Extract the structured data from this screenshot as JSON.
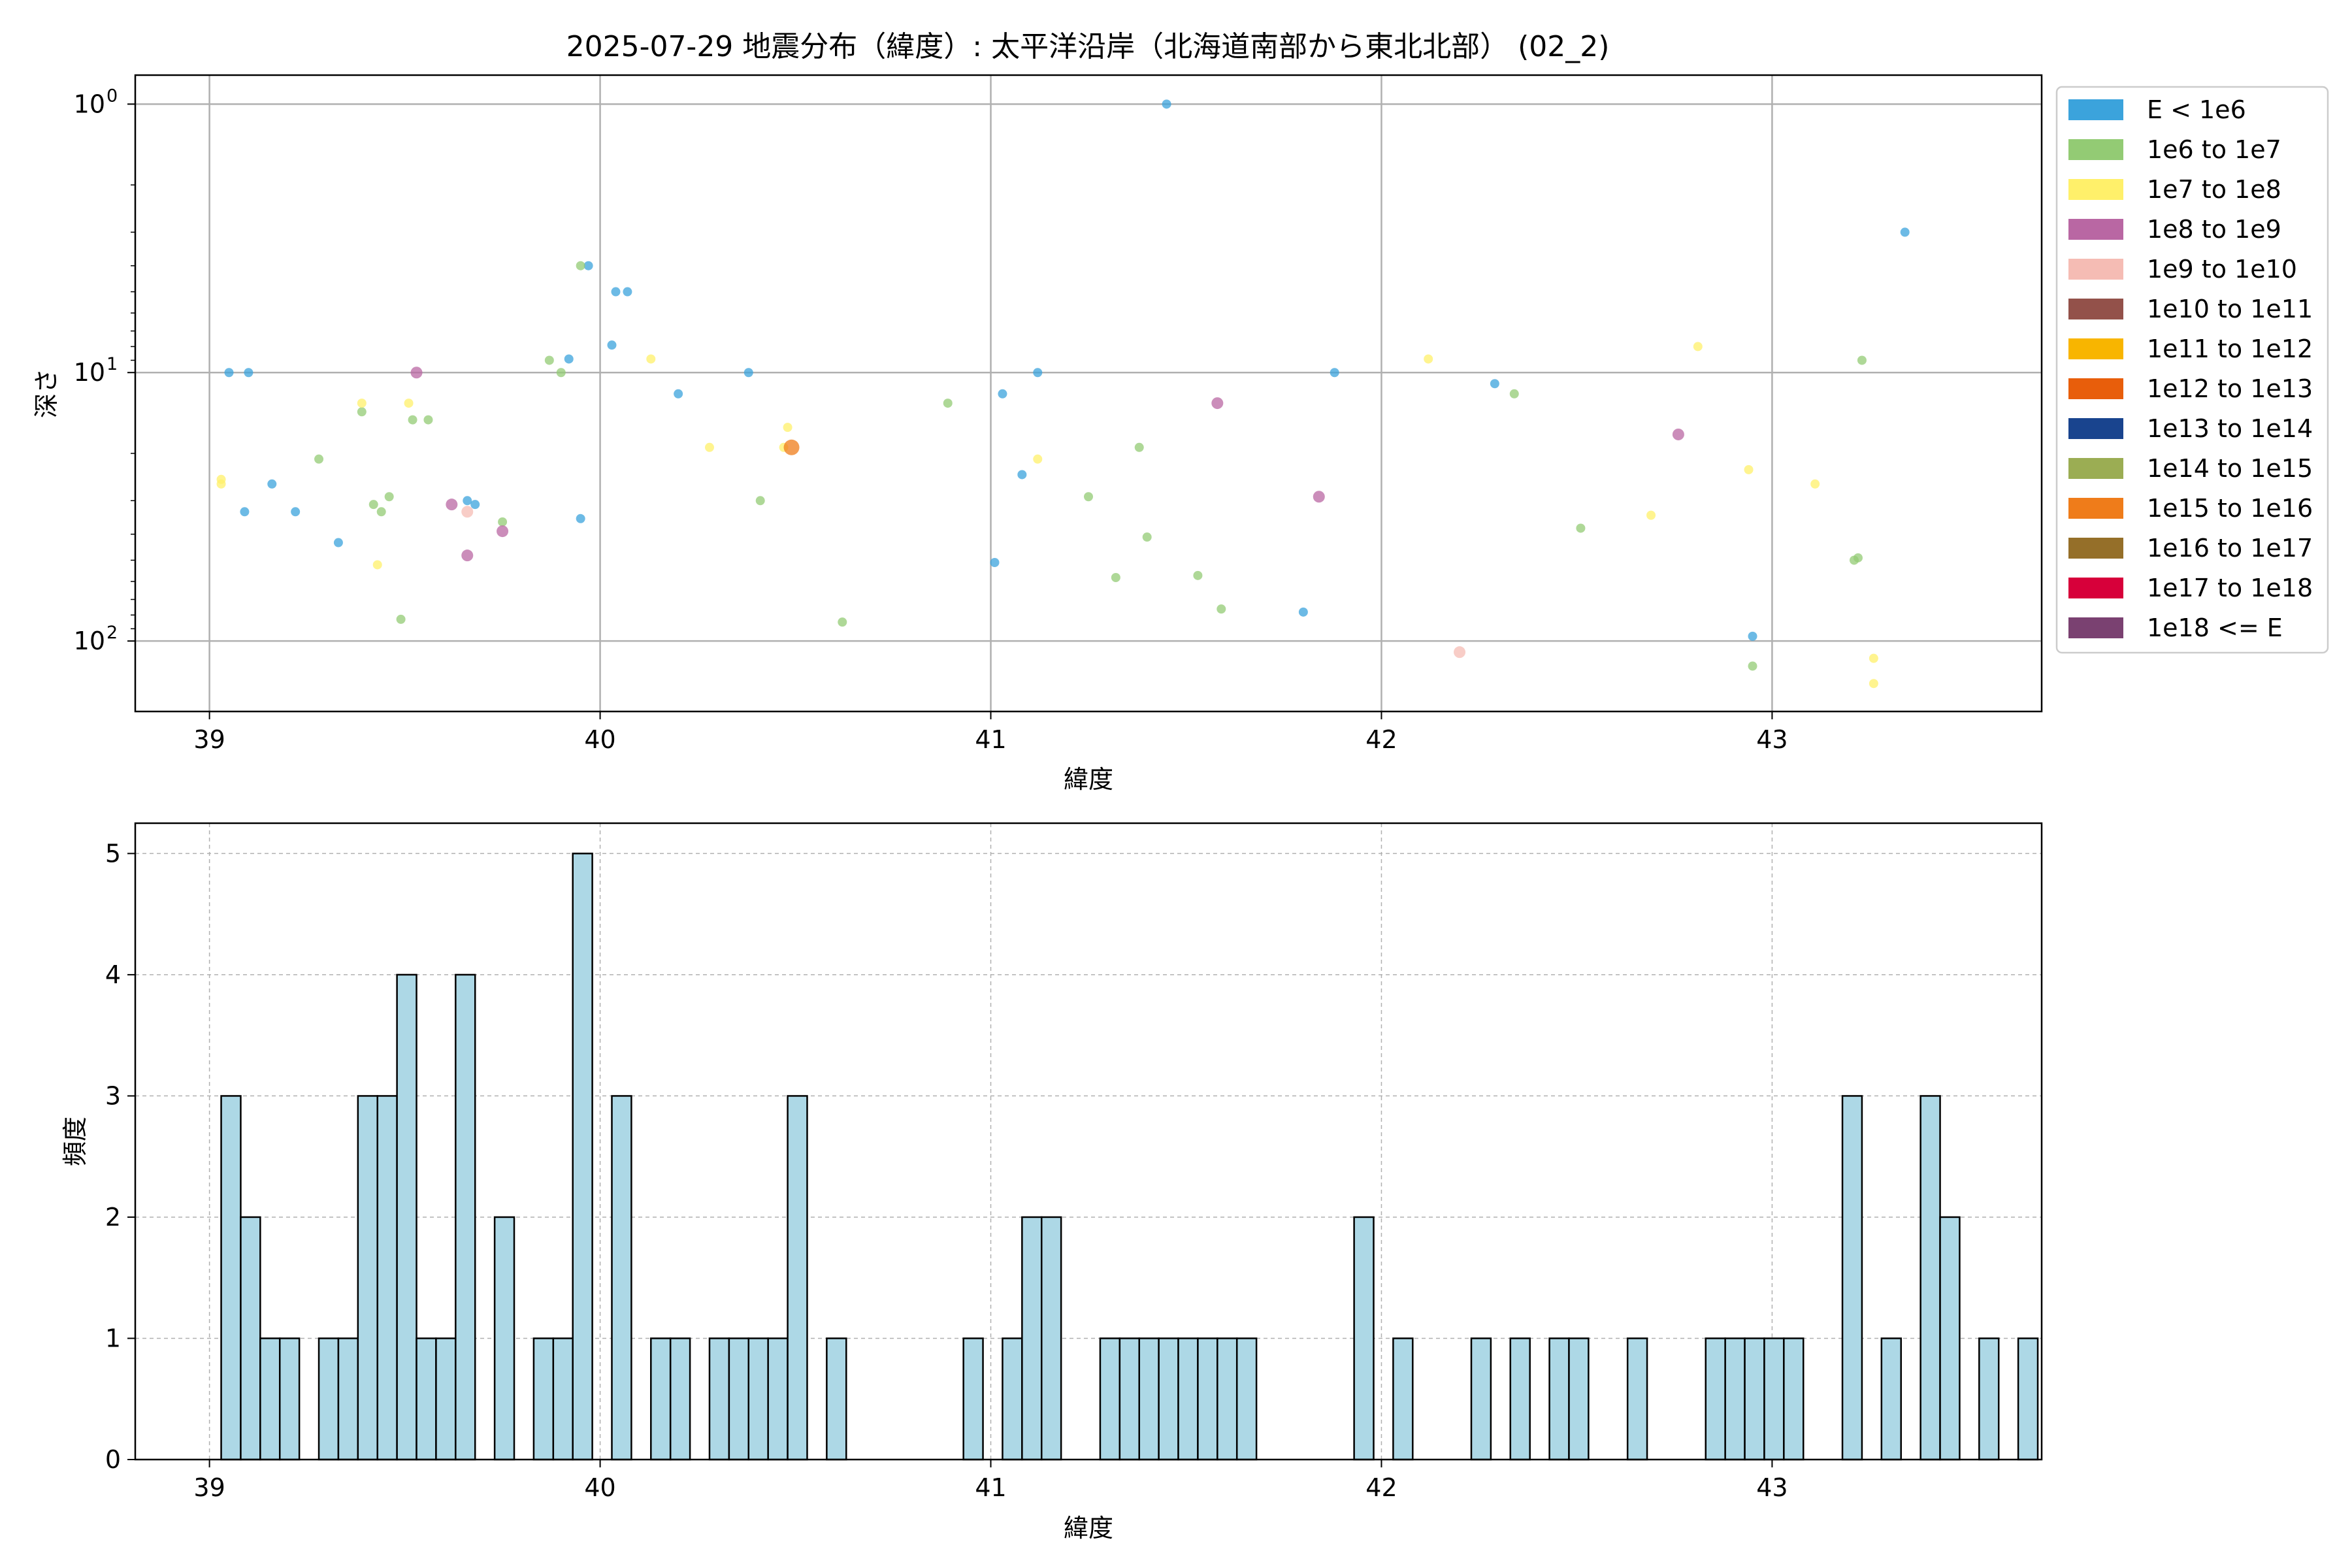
{
  "chart_data": [
    {
      "type": "scatter",
      "title": "2025-07-29 地震分布（緯度）: 太平洋沿岸（北海道南部から東北北部） (02_2)",
      "xlabel": "緯度",
      "ylabel": "深さ",
      "xlim": [
        38.81,
        43.69
      ],
      "ylim": [
        183,
        0.78
      ],
      "y_scale": "log",
      "y_inverted": true,
      "grid": true,
      "x_ticks": [
        {
          "value": 39,
          "label": "39"
        },
        {
          "value": 40,
          "label": "40"
        },
        {
          "value": 41,
          "label": "41"
        },
        {
          "value": 42,
          "label": "42"
        },
        {
          "value": 43,
          "label": "43"
        }
      ],
      "y_ticks": [
        {
          "value": 1,
          "base": "10",
          "exp": "0"
        },
        {
          "value": 10,
          "base": "10",
          "exp": "1"
        },
        {
          "value": 100,
          "base": "10",
          "exp": "2"
        }
      ],
      "legend": {
        "position": "outside-right",
        "entries": [
          {
            "label": "E < 1e6",
            "color": "#3ba3dc"
          },
          {
            "label": "1e6 to 1e7",
            "color": "#93cb74"
          },
          {
            "label": "1e7 to 1e8",
            "color": "#fff06a"
          },
          {
            "label": "1e8 to 1e9",
            "color": "#b967a3"
          },
          {
            "label": "1e9 to 1e10",
            "color": "#f5bcb4"
          },
          {
            "label": "1e10 to 1e11",
            "color": "#93514a"
          },
          {
            "label": "1e11 to 1e12",
            "color": "#f8b500"
          },
          {
            "label": "1e12 to 1e13",
            "color": "#e85e0b"
          },
          {
            "label": "1e13 to 1e14",
            "color": "#19448e"
          },
          {
            "label": "1e14 to 1e15",
            "color": "#9bad53"
          },
          {
            "label": "1e15 to 1e16",
            "color": "#ef7c1a"
          },
          {
            "label": "1e16 to 1e17",
            "color": "#956f29"
          },
          {
            "label": "1e17 to 1e18",
            "color": "#d7003a"
          },
          {
            "label": "1e18 <= E",
            "color": "#7a4171"
          }
        ]
      },
      "series": [
        {
          "class_index": 0,
          "points": [
            [
              39.05,
              10.0
            ],
            [
              39.1,
              10.0
            ],
            [
              39.16,
              26.0
            ],
            [
              39.09,
              33.0
            ],
            [
              39.22,
              33.0
            ],
            [
              39.33,
              43.0
            ],
            [
              39.66,
              30.0
            ],
            [
              39.68,
              31.0
            ],
            [
              39.95,
              35.0
            ],
            [
              39.92,
              8.9
            ],
            [
              39.97,
              4.0
            ],
            [
              40.04,
              5.0
            ],
            [
              40.07,
              5.0
            ],
            [
              40.03,
              7.9
            ],
            [
              40.2,
              12.0
            ],
            [
              40.38,
              10.0
            ],
            [
              41.01,
              51.0
            ],
            [
              41.03,
              12.0
            ],
            [
              41.08,
              24.0
            ],
            [
              41.12,
              10.0
            ],
            [
              41.45,
              1.0
            ],
            [
              41.8,
              78.0
            ],
            [
              41.88,
              10.0
            ],
            [
              42.29,
              11.0
            ],
            [
              42.95,
              96.0
            ],
            [
              43.34,
              3.0
            ]
          ]
        },
        {
          "class_index": 1,
          "points": [
            [
              39.28,
              21.0
            ],
            [
              39.39,
              14.0
            ],
            [
              39.42,
              31.0
            ],
            [
              39.44,
              33.0
            ],
            [
              39.46,
              29.0
            ],
            [
              39.49,
              83.0
            ],
            [
              39.52,
              15.0
            ],
            [
              39.56,
              15.0
            ],
            [
              39.75,
              36.0
            ],
            [
              39.87,
              9.0
            ],
            [
              39.9,
              10.0
            ],
            [
              39.95,
              4.0
            ],
            [
              40.41,
              30.0
            ],
            [
              40.62,
              85.0
            ],
            [
              40.89,
              13.0
            ],
            [
              41.25,
              29.0
            ],
            [
              41.32,
              58.0
            ],
            [
              41.38,
              19.0
            ],
            [
              41.4,
              41.0
            ],
            [
              41.53,
              57.0
            ],
            [
              41.59,
              76.0
            ],
            [
              42.34,
              12.0
            ],
            [
              42.51,
              38.0
            ],
            [
              42.95,
              124.0
            ],
            [
              43.21,
              50.0
            ],
            [
              43.22,
              49.0
            ],
            [
              43.23,
              9.0
            ]
          ]
        },
        {
          "class_index": 2,
          "points": [
            [
              39.03,
              26.0
            ],
            [
              39.03,
              25.0
            ],
            [
              39.39,
              13.0
            ],
            [
              39.43,
              52.0
            ],
            [
              39.51,
              13.0
            ],
            [
              40.13,
              8.9
            ],
            [
              40.28,
              19.0
            ],
            [
              40.48,
              16.0
            ],
            [
              40.47,
              19.0
            ],
            [
              41.12,
              21.0
            ],
            [
              42.12,
              8.9
            ],
            [
              42.69,
              34.0
            ],
            [
              42.81,
              8.0
            ],
            [
              42.94,
              23.0
            ],
            [
              43.11,
              26.0
            ],
            [
              43.26,
              116.0
            ],
            [
              43.26,
              144.0
            ]
          ]
        },
        {
          "class_index": 3,
          "points": [
            [
              39.53,
              10.0
            ],
            [
              39.62,
              31.0
            ],
            [
              39.66,
              48.0
            ],
            [
              39.75,
              39.0
            ],
            [
              41.58,
              13.0
            ],
            [
              41.84,
              29.0
            ],
            [
              42.76,
              17.0
            ]
          ]
        },
        {
          "class_index": 4,
          "points": [
            [
              39.66,
              33.0
            ],
            [
              42.2,
              110.0
            ]
          ]
        },
        {
          "class_index": 10,
          "points": [
            [
              40.49,
              19.0
            ]
          ]
        }
      ]
    },
    {
      "type": "bar",
      "subtype": "histogram",
      "xlabel": "緯度",
      "ylabel": "頻度",
      "xlim": [
        38.81,
        43.69
      ],
      "ylim": [
        0,
        5.25
      ],
      "grid": true,
      "bar_color": "#add8e6",
      "x_ticks": [
        {
          "value": 39,
          "label": "39"
        },
        {
          "value": 40,
          "label": "40"
        },
        {
          "value": 41,
          "label": "41"
        },
        {
          "value": 42,
          "label": "42"
        },
        {
          "value": 43,
          "label": "43"
        }
      ],
      "y_ticks": [
        {
          "value": 0,
          "label": "0"
        },
        {
          "value": 1,
          "label": "1"
        },
        {
          "value": 2,
          "label": "2"
        },
        {
          "value": 3,
          "label": "3"
        },
        {
          "value": 4,
          "label": "4"
        },
        {
          "value": 5,
          "label": "5"
        }
      ],
      "bins": {
        "start": 39.03,
        "width": 0.05,
        "counts": [
          3,
          2,
          1,
          1,
          0,
          1,
          1,
          3,
          3,
          4,
          1,
          1,
          4,
          0,
          2,
          0,
          1,
          1,
          5,
          0,
          3,
          0,
          1,
          1,
          0,
          1,
          1,
          1,
          1,
          3,
          0,
          1,
          0,
          0,
          0,
          0,
          0,
          0,
          1,
          0,
          1,
          2,
          2,
          0,
          0,
          1,
          1,
          1,
          1,
          1,
          1,
          1,
          1,
          0,
          0,
          0,
          0,
          0,
          2,
          0,
          1,
          0,
          0,
          0,
          1,
          0,
          1,
          0,
          1,
          1,
          0,
          0,
          1,
          0,
          0,
          0,
          1,
          1,
          1,
          1,
          1,
          0,
          0,
          3,
          0,
          1,
          0,
          3,
          2,
          0,
          1,
          0,
          1
        ]
      }
    }
  ]
}
